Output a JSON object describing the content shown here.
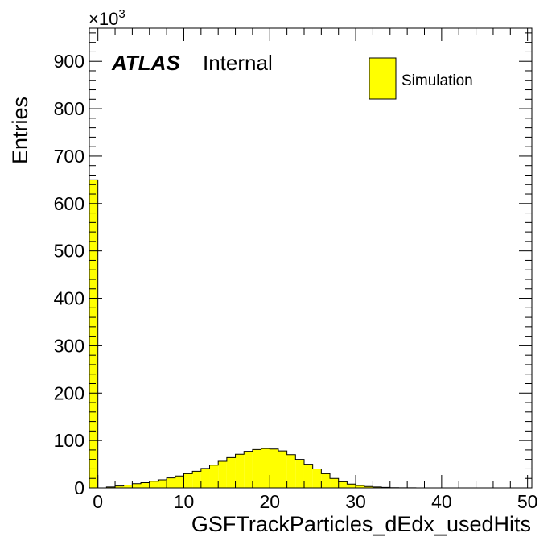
{
  "chart_data": {
    "type": "bar",
    "histogram": true,
    "title": "",
    "xlabel": "GSFTrackParticles_dEdx_usedHits",
    "ylabel": "Entries",
    "y_multiplier_label": "×10",
    "y_multiplier_exponent": "3",
    "xlim": [
      -1,
      50.5
    ],
    "ylim": [
      0,
      970
    ],
    "x_ticks": [
      "0",
      "10",
      "20",
      "30",
      "40",
      "50"
    ],
    "y_ticks": [
      "0",
      "100",
      "200",
      "300",
      "400",
      "500",
      "600",
      "700",
      "800",
      "900"
    ],
    "bin_width": 1,
    "bin_start": -1,
    "values": [
      650,
      0,
      2,
      4,
      6,
      9,
      11,
      14,
      17,
      21,
      25,
      30,
      35,
      41,
      48,
      56,
      64,
      71,
      77,
      81,
      83,
      82,
      78,
      70,
      60,
      50,
      40,
      30,
      20,
      13,
      8,
      5,
      3,
      2,
      1,
      0.5,
      0.3,
      0.2,
      0.1,
      0.1,
      0,
      0,
      0,
      0,
      0,
      0,
      0,
      0,
      0,
      0,
      0
    ],
    "colors": {
      "fill": "#ffff00",
      "line": "#000000"
    },
    "legend": {
      "placement": "top-right",
      "entries": [
        "Simulation"
      ]
    },
    "annotation": {
      "atlas": "ATLAS",
      "status": "Internal"
    },
    "grid": false
  }
}
